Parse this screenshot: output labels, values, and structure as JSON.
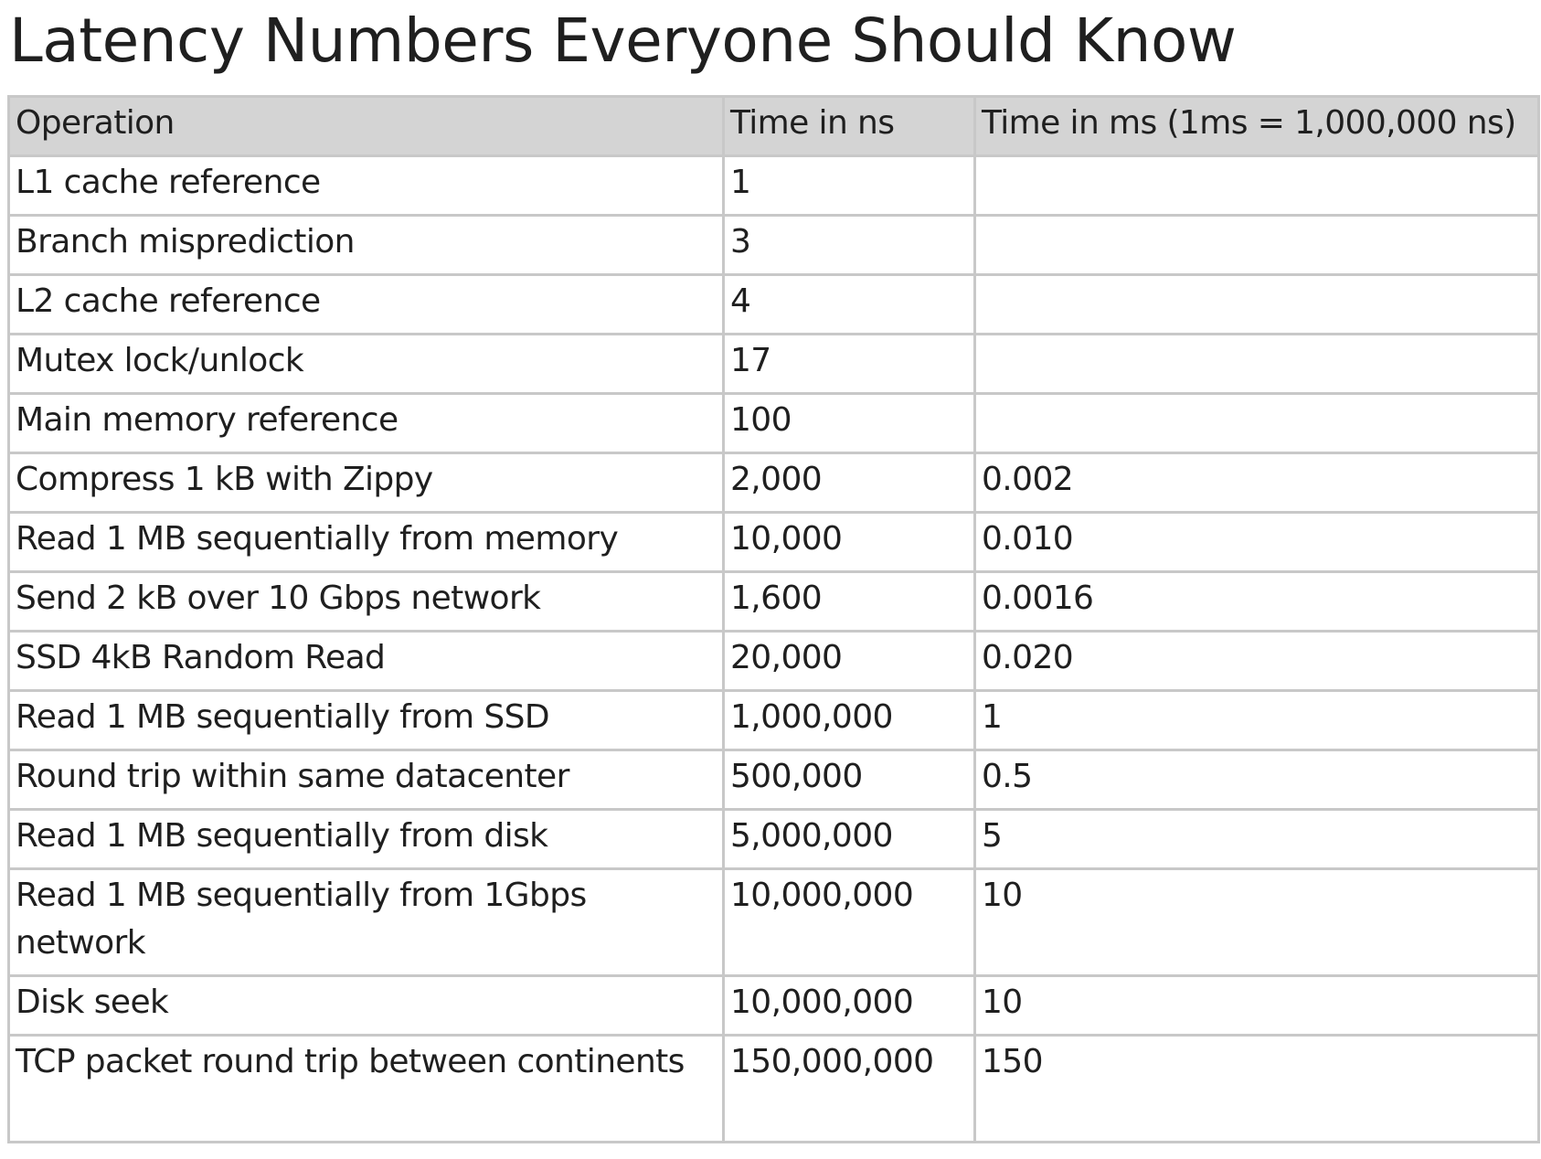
{
  "title": "Latency Numbers Everyone Should Know",
  "table": {
    "headers": {
      "operation": "Operation",
      "time_ns": "Time in ns",
      "time_ms": "Time in ms (1ms = 1,000,000 ns)"
    },
    "rows": [
      {
        "operation": "L1 cache reference",
        "time_ns": "1",
        "time_ms": ""
      },
      {
        "operation": "Branch misprediction",
        "time_ns": "3",
        "time_ms": ""
      },
      {
        "operation": "L2 cache reference",
        "time_ns": "4",
        "time_ms": ""
      },
      {
        "operation": "Mutex lock/unlock",
        "time_ns": "17",
        "time_ms": ""
      },
      {
        "operation": "Main memory reference",
        "time_ns": "100",
        "time_ms": ""
      },
      {
        "operation": "Compress 1 kB with Zippy",
        "time_ns": "2,000",
        "time_ms": "0.002"
      },
      {
        "operation": "Read 1 MB sequentially from memory",
        "time_ns": "10,000",
        "time_ms": "0.010"
      },
      {
        "operation": "Send 2 kB over 10 Gbps network",
        "time_ns": "1,600",
        "time_ms": "0.0016"
      },
      {
        "operation": "SSD 4kB Random Read",
        "time_ns": "20,000",
        "time_ms": "0.020"
      },
      {
        "operation": "Read 1 MB sequentially from SSD",
        "time_ns": "1,000,000",
        "time_ms": "1"
      },
      {
        "operation": "Round trip within same datacenter",
        "time_ns": "500,000",
        "time_ms": "0.5"
      },
      {
        "operation": "Read 1 MB sequentially from disk",
        "time_ns": "5,000,000",
        "time_ms": "5"
      },
      {
        "operation": "Read 1 MB sequentially from 1Gbps network",
        "time_ns": "10,000,000",
        "time_ms": "10"
      },
      {
        "operation": "Disk seek",
        "time_ns": "10,000,000",
        "time_ms": "10"
      },
      {
        "operation": "TCP packet round trip between continents",
        "time_ns": "150,000,000",
        "time_ms": "150"
      }
    ]
  }
}
